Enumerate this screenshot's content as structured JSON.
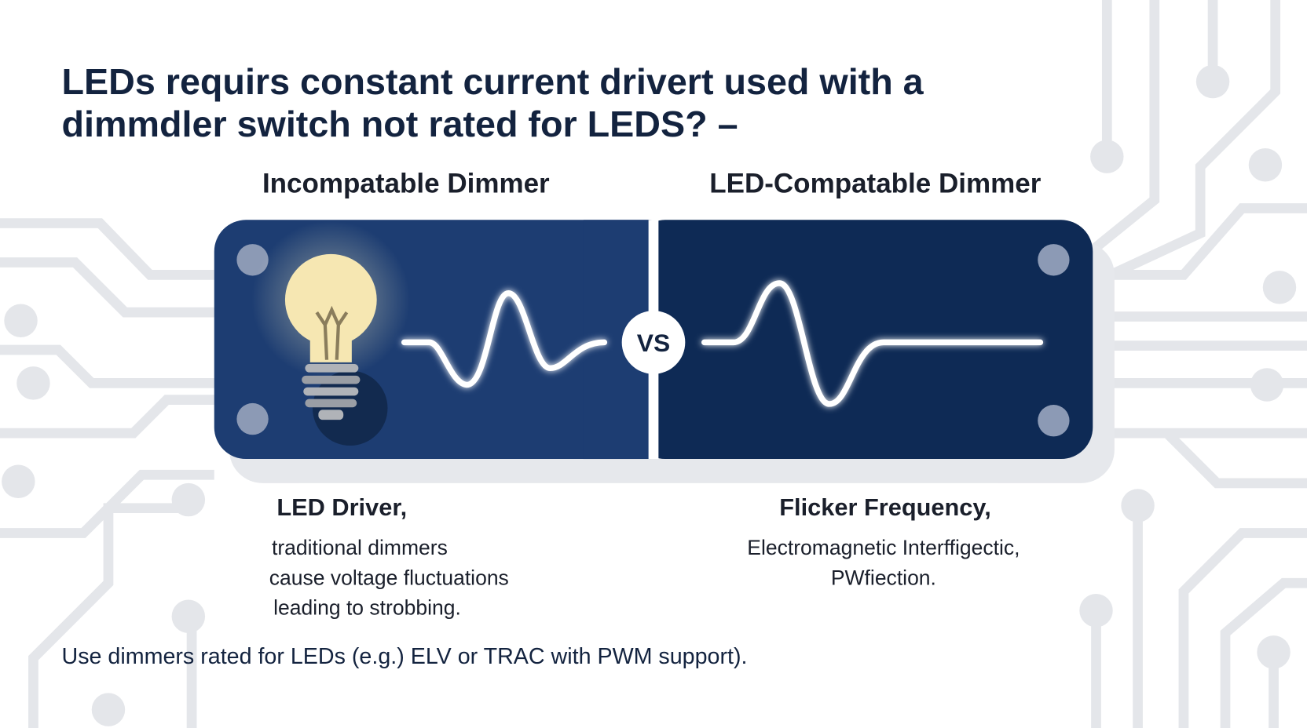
{
  "title_lines": [
    "LEDs requirs constant current drivert used with a",
    "dimmdler switch not rated for LEDS? –"
  ],
  "panels": [
    {
      "heading": "Incompatable Dimmer",
      "subheading": "LED Driver,",
      "lines": [
        "traditional dimmers",
        "cause voltage fluctuations",
        "leading to strobbing."
      ]
    },
    {
      "heading": "LED-Compatable Dimmer",
      "subheading": "Flicker Frequency,",
      "lines": [
        "Electromagnetic Interffigectic,",
        "PWfiection."
      ]
    }
  ],
  "vs": "VS",
  "footer": "Use dimmers rated for LEDs (e.g.) ELV or TRAC with PWM support)."
}
